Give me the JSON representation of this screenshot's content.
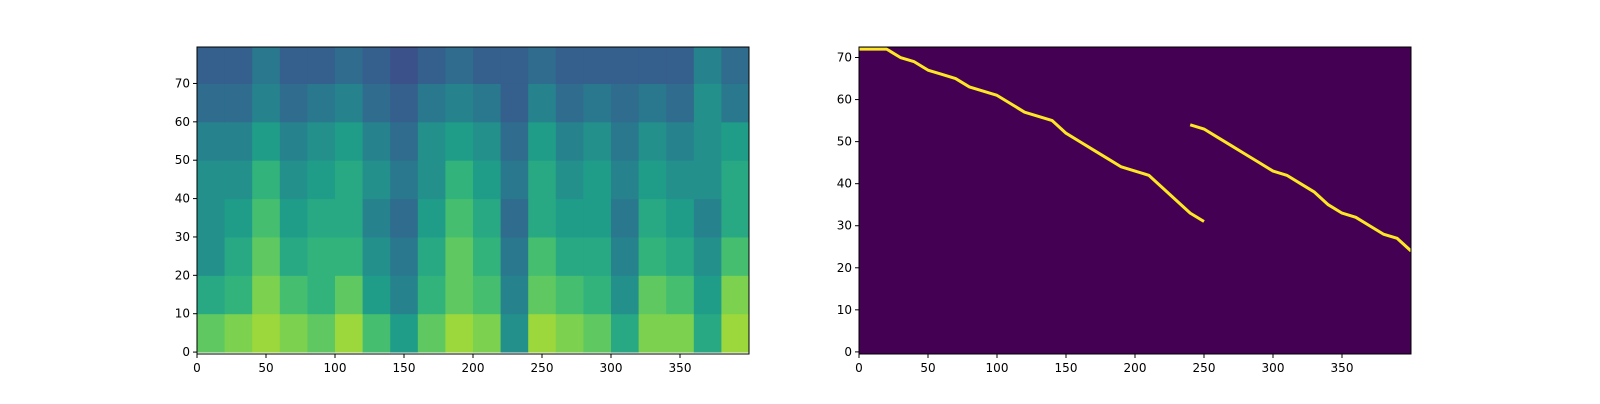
{
  "chart_data": [
    {
      "type": "heatmap",
      "colormap": "viridis",
      "clim": [
        0,
        1
      ],
      "xbins": [
        0,
        20,
        40,
        60,
        80,
        100,
        120,
        140,
        160,
        180,
        200,
        220,
        240,
        260,
        280,
        300,
        320,
        340,
        360,
        380,
        400
      ],
      "ybins": [
        0,
        10,
        20,
        30,
        40,
        50,
        60,
        70,
        80
      ],
      "values": [
        [
          0.75,
          0.8,
          0.85,
          0.8,
          0.75,
          0.85,
          0.7,
          0.55,
          0.75,
          0.85,
          0.8,
          0.5,
          0.85,
          0.8,
          0.75,
          0.6,
          0.8,
          0.8,
          0.6,
          0.85
        ],
        [
          0.6,
          0.65,
          0.8,
          0.7,
          0.65,
          0.75,
          0.55,
          0.45,
          0.65,
          0.75,
          0.7,
          0.45,
          0.75,
          0.7,
          0.65,
          0.5,
          0.75,
          0.7,
          0.55,
          0.8
        ],
        [
          0.5,
          0.6,
          0.75,
          0.6,
          0.65,
          0.65,
          0.5,
          0.4,
          0.6,
          0.75,
          0.65,
          0.4,
          0.7,
          0.6,
          0.6,
          0.45,
          0.65,
          0.6,
          0.5,
          0.7
        ],
        [
          0.5,
          0.55,
          0.7,
          0.55,
          0.6,
          0.6,
          0.45,
          0.35,
          0.55,
          0.7,
          0.6,
          0.35,
          0.6,
          0.55,
          0.55,
          0.4,
          0.6,
          0.55,
          0.45,
          0.6
        ],
        [
          0.5,
          0.5,
          0.65,
          0.5,
          0.55,
          0.6,
          0.5,
          0.4,
          0.5,
          0.65,
          0.55,
          0.4,
          0.6,
          0.5,
          0.55,
          0.45,
          0.55,
          0.5,
          0.5,
          0.6
        ],
        [
          0.45,
          0.45,
          0.55,
          0.45,
          0.5,
          0.55,
          0.45,
          0.35,
          0.5,
          0.55,
          0.5,
          0.35,
          0.55,
          0.45,
          0.5,
          0.4,
          0.5,
          0.45,
          0.5,
          0.55
        ],
        [
          0.35,
          0.35,
          0.45,
          0.35,
          0.4,
          0.45,
          0.35,
          0.3,
          0.4,
          0.45,
          0.4,
          0.3,
          0.45,
          0.35,
          0.4,
          0.35,
          0.4,
          0.35,
          0.5,
          0.4
        ],
        [
          0.3,
          0.3,
          0.4,
          0.3,
          0.3,
          0.35,
          0.3,
          0.25,
          0.3,
          0.35,
          0.3,
          0.3,
          0.35,
          0.3,
          0.3,
          0.3,
          0.3,
          0.3,
          0.45,
          0.35
        ]
      ],
      "xlim": [
        0,
        400
      ],
      "ylim": [
        -0.5,
        79.5
      ],
      "xticks": [
        0,
        50,
        100,
        150,
        200,
        250,
        300,
        350
      ],
      "yticks": [
        0,
        10,
        20,
        30,
        40,
        50,
        60,
        70
      ]
    },
    {
      "type": "alignment",
      "background": "#440154",
      "series": [
        {
          "color": "#fde725",
          "x": [
            0,
            20,
            30,
            40,
            50,
            60,
            70,
            80,
            100,
            110,
            120,
            140,
            150,
            160,
            170,
            180,
            190,
            200,
            210,
            220,
            230,
            240,
            250
          ],
          "y": [
            72,
            72,
            70,
            69,
            67,
            66,
            65,
            63,
            61,
            59,
            57,
            55,
            52,
            50,
            48,
            46,
            44,
            43,
            42,
            39,
            36,
            33,
            31
          ]
        },
        {
          "color": "#fde725",
          "x": [
            240,
            250,
            260,
            270,
            280,
            290,
            300,
            310,
            320,
            330,
            340,
            350,
            360,
            370,
            380,
            390,
            400
          ],
          "y": [
            54,
            53,
            51,
            49,
            47,
            45,
            43,
            42,
            40,
            38,
            35,
            33,
            32,
            30,
            28,
            27,
            24
          ]
        }
      ],
      "xlim": [
        0,
        400
      ],
      "ylim": [
        -0.5,
        72.5
      ],
      "xticks": [
        0,
        50,
        100,
        150,
        200,
        250,
        300,
        350
      ],
      "yticks": [
        0,
        10,
        20,
        30,
        40,
        50,
        60,
        70
      ]
    }
  ]
}
